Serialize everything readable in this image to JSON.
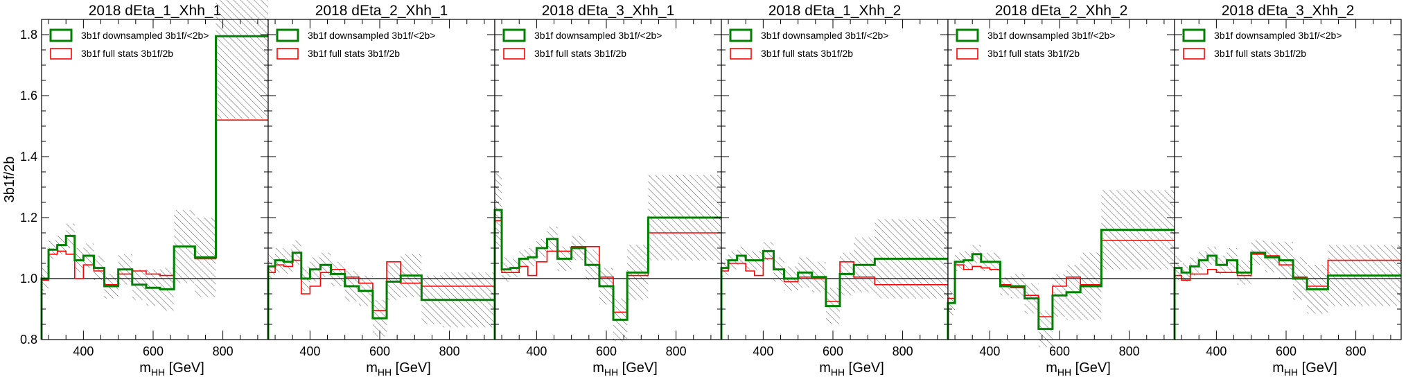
{
  "ylabel": "3b1f/2b",
  "xlabel_main": "m",
  "xlabel_sub": "HH",
  "xlabel_unit": " [GeV]",
  "yticks": [
    0.8,
    1.0,
    1.2,
    1.4,
    1.6,
    1.8
  ],
  "ytick_labels": [
    "0.8",
    "1.0",
    "1.2",
    "1.4",
    "1.6",
    "1.8"
  ],
  "xticks": [
    400,
    600,
    800
  ],
  "xtick_labels": [
    "400",
    "600",
    "800"
  ],
  "legend": {
    "downsampled": "3b1f downsampled 3b1f/<2b>",
    "full": "3b1f full stats 3b1f/2b"
  },
  "colors": {
    "downsampled": "#008000",
    "full": "#ff0000",
    "band": "#555555"
  },
  "chart_data": [
    {
      "type": "step-histogram",
      "title": "2018 dEta_1_Xhh_1",
      "xlim": [
        280,
        930
      ],
      "ylim": [
        0.8,
        1.85
      ],
      "reference_line": 1.0,
      "edges": [
        280,
        300,
        325,
        350,
        375,
        400,
        430,
        460,
        500,
        540,
        580,
        620,
        660,
        720,
        780,
        850,
        930
      ],
      "series": [
        {
          "key": "downsampled",
          "values": [
            1.0,
            1.095,
            1.11,
            1.14,
            1.06,
            1.075,
            1.035,
            0.975,
            1.03,
            0.98,
            0.97,
            0.965,
            1.105,
            1.07,
            1.795,
            1.795
          ]
        },
        {
          "key": "full",
          "values": [
            0.995,
            1.08,
            1.09,
            1.08,
            1.0,
            1.045,
            1.025,
            0.98,
            1.015,
            1.025,
            1.015,
            1.01,
            1.105,
            1.065,
            1.52,
            1.52
          ]
        }
      ],
      "uncertainty_half_width": [
        0.04,
        0.03,
        0.03,
        0.04,
        0.04,
        0.04,
        0.04,
        0.04,
        0.05,
        0.05,
        0.06,
        0.07,
        0.12,
        0.13,
        0.27,
        0.27
      ]
    },
    {
      "type": "step-histogram",
      "title": "2018 dEta_2_Xhh_1",
      "xlim": [
        280,
        930
      ],
      "ylim": [
        0.8,
        1.85
      ],
      "reference_line": 1.0,
      "edges": [
        280,
        300,
        325,
        350,
        375,
        400,
        430,
        460,
        500,
        540,
        580,
        620,
        660,
        720,
        780,
        850,
        930
      ],
      "series": [
        {
          "key": "downsampled",
          "values": [
            1.04,
            1.06,
            1.055,
            1.085,
            1.0,
            1.03,
            1.045,
            1.015,
            0.975,
            0.96,
            0.87,
            0.99,
            1.01,
            0.93,
            0.93,
            0.93
          ]
        },
        {
          "key": "full",
          "values": [
            1.02,
            1.045,
            1.04,
            1.06,
            0.95,
            0.975,
            1.02,
            1.03,
            1.005,
            0.985,
            0.895,
            1.055,
            0.985,
            0.975,
            0.975,
            0.975
          ]
        }
      ],
      "uncertainty_half_width": [
        0.04,
        0.04,
        0.04,
        0.04,
        0.04,
        0.04,
        0.04,
        0.04,
        0.05,
        0.05,
        0.06,
        0.06,
        0.07,
        0.08,
        0.09,
        0.09
      ]
    },
    {
      "type": "step-histogram",
      "title": "2018 dEta_3_Xhh_1",
      "xlim": [
        280,
        930
      ],
      "ylim": [
        0.8,
        1.85
      ],
      "reference_line": 1.0,
      "edges": [
        280,
        300,
        325,
        350,
        375,
        400,
        430,
        460,
        500,
        540,
        580,
        620,
        660,
        720,
        780,
        850,
        930
      ],
      "series": [
        {
          "key": "downsampled",
          "values": [
            1.225,
            1.03,
            1.035,
            1.065,
            1.07,
            1.1,
            1.13,
            1.065,
            1.1,
            1.045,
            0.975,
            0.865,
            1.02,
            1.2,
            1.2,
            1.2
          ]
        },
        {
          "key": "full",
          "values": [
            1.19,
            1.02,
            1.02,
            1.04,
            1.01,
            1.055,
            1.09,
            1.09,
            1.105,
            1.105,
            1.005,
            0.89,
            1.01,
            1.15,
            1.15,
            1.15
          ]
        }
      ],
      "uncertainty_half_width": [
        0.12,
        0.04,
        0.03,
        0.03,
        0.03,
        0.03,
        0.04,
        0.04,
        0.04,
        0.05,
        0.06,
        0.07,
        0.09,
        0.14,
        0.14,
        0.14
      ]
    },
    {
      "type": "step-histogram",
      "title": "2018 dEta_1_Xhh_2",
      "xlim": [
        280,
        930
      ],
      "ylim": [
        0.8,
        1.85
      ],
      "reference_line": 1.0,
      "edges": [
        280,
        300,
        325,
        350,
        375,
        400,
        430,
        460,
        500,
        540,
        580,
        620,
        660,
        720,
        780,
        850,
        930
      ],
      "series": [
        {
          "key": "downsampled",
          "values": [
            1.035,
            1.06,
            1.075,
            1.06,
            1.06,
            1.09,
            1.03,
            1.0,
            1.02,
            1.005,
            0.91,
            1.015,
            1.045,
            1.065,
            1.065,
            1.065
          ]
        },
        {
          "key": "full",
          "values": [
            1.025,
            1.05,
            1.05,
            1.025,
            1.01,
            1.065,
            1.03,
            0.99,
            1.005,
            1.0,
            0.925,
            1.055,
            1.005,
            0.98,
            0.98,
            0.98
          ]
        }
      ],
      "uncertainty_half_width": [
        0.03,
        0.03,
        0.03,
        0.03,
        0.03,
        0.03,
        0.04,
        0.04,
        0.05,
        0.05,
        0.06,
        0.07,
        0.09,
        0.13,
        0.13,
        0.13
      ]
    },
    {
      "type": "step-histogram",
      "title": "2018 dEta_2_Xhh_2",
      "xlim": [
        280,
        930
      ],
      "ylim": [
        0.8,
        1.85
      ],
      "reference_line": 1.0,
      "edges": [
        280,
        300,
        325,
        350,
        375,
        400,
        430,
        460,
        500,
        540,
        580,
        620,
        660,
        720,
        780,
        850,
        930
      ],
      "series": [
        {
          "key": "downsampled",
          "values": [
            0.92,
            1.055,
            1.06,
            1.08,
            1.055,
            1.055,
            0.975,
            0.975,
            0.935,
            0.835,
            0.945,
            0.955,
            0.975,
            1.16,
            1.16,
            1.16
          ]
        },
        {
          "key": "full",
          "values": [
            0.935,
            1.045,
            1.03,
            1.04,
            1.035,
            1.03,
            0.98,
            0.97,
            0.945,
            0.875,
            0.975,
            1.005,
            0.98,
            1.125,
            1.125,
            1.125
          ]
        }
      ],
      "uncertainty_half_width": [
        0.04,
        0.03,
        0.03,
        0.03,
        0.03,
        0.03,
        0.03,
        0.04,
        0.05,
        0.06,
        0.07,
        0.09,
        0.11,
        0.13,
        0.13,
        0.13
      ]
    },
    {
      "type": "step-histogram",
      "title": "2018 dEta_3_Xhh_2",
      "xlim": [
        280,
        930
      ],
      "ylim": [
        0.8,
        1.85
      ],
      "reference_line": 1.0,
      "edges": [
        280,
        300,
        325,
        350,
        375,
        400,
        430,
        460,
        500,
        540,
        580,
        620,
        660,
        720,
        780,
        850,
        930
      ],
      "series": [
        {
          "key": "downsampled",
          "values": [
            1.035,
            1.02,
            1.04,
            1.06,
            1.075,
            1.045,
            1.06,
            1.02,
            1.085,
            1.07,
            1.06,
            1.0,
            0.965,
            1.01,
            1.01,
            1.01
          ]
        },
        {
          "key": "full",
          "values": [
            1.01,
            0.995,
            1.015,
            1.015,
            1.03,
            1.02,
            1.02,
            1.01,
            1.08,
            1.075,
            1.045,
            1.005,
            0.975,
            1.06,
            1.06,
            1.06
          ]
        }
      ],
      "uncertainty_half_width": [
        0.04,
        0.03,
        0.03,
        0.03,
        0.03,
        0.03,
        0.04,
        0.04,
        0.04,
        0.05,
        0.06,
        0.07,
        0.08,
        0.1,
        0.1,
        0.1
      ]
    }
  ]
}
